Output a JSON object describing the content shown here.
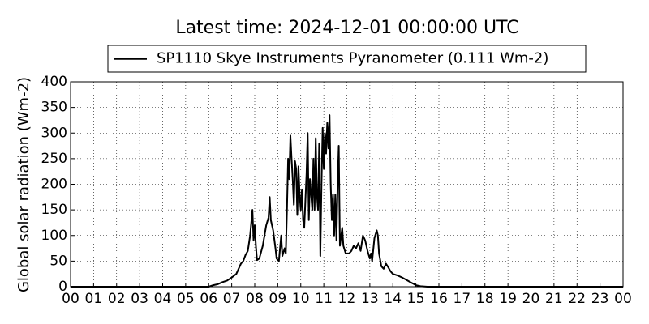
{
  "chart_data": {
    "type": "line",
    "title": "Latest time: 2024-12-01 00:00:00 UTC",
    "y_label": "Global solar radiation (Wm-2)",
    "legend": "upper center",
    "grid": true,
    "xlim": [
      0,
      24
    ],
    "ylim": [
      0,
      400
    ],
    "yticks": [
      0,
      50,
      100,
      150,
      200,
      250,
      300,
      350,
      400
    ],
    "xticks": [
      {
        "value": 0,
        "label": "00"
      },
      {
        "value": 1,
        "label": "01"
      },
      {
        "value": 2,
        "label": "02"
      },
      {
        "value": 3,
        "label": "03"
      },
      {
        "value": 4,
        "label": "04"
      },
      {
        "value": 5,
        "label": "05"
      },
      {
        "value": 6,
        "label": "06"
      },
      {
        "value": 7,
        "label": "07"
      },
      {
        "value": 8,
        "label": "08"
      },
      {
        "value": 9,
        "label": "09"
      },
      {
        "value": 10,
        "label": "10"
      },
      {
        "value": 11,
        "label": "11"
      },
      {
        "value": 12,
        "label": "12"
      },
      {
        "value": 13,
        "label": "13"
      },
      {
        "value": 14,
        "label": "14"
      },
      {
        "value": 15,
        "label": "15"
      },
      {
        "value": 16,
        "label": "16"
      },
      {
        "value": 17,
        "label": "17"
      },
      {
        "value": 18,
        "label": "18"
      },
      {
        "value": 19,
        "label": "19"
      },
      {
        "value": 20,
        "label": "20"
      },
      {
        "value": 21,
        "label": "21"
      },
      {
        "value": 22,
        "label": "22"
      },
      {
        "value": 23,
        "label": "23"
      },
      {
        "value": 24,
        "label": "00"
      }
    ],
    "x": [
      0,
      6.0,
      6.2,
      6.4,
      6.6,
      6.8,
      7.0,
      7.2,
      7.4,
      7.5,
      7.6,
      7.7,
      7.8,
      7.9,
      7.95,
      8.0,
      8.05,
      8.1,
      8.2,
      8.35,
      8.5,
      8.6,
      8.65,
      8.7,
      8.8,
      8.9,
      8.95,
      9.05,
      9.15,
      9.2,
      9.3,
      9.35,
      9.4,
      9.45,
      9.5,
      9.55,
      9.6,
      9.65,
      9.7,
      9.75,
      9.8,
      9.85,
      9.9,
      9.95,
      10.0,
      10.05,
      10.1,
      10.15,
      10.25,
      10.3,
      10.35,
      10.4,
      10.5,
      10.55,
      10.6,
      10.65,
      10.7,
      10.75,
      10.8,
      10.85,
      10.9,
      10.95,
      11.0,
      11.05,
      11.1,
      11.15,
      11.2,
      11.25,
      11.3,
      11.35,
      11.4,
      11.45,
      11.5,
      11.55,
      11.6,
      11.65,
      11.7,
      11.8,
      11.85,
      11.95,
      12.1,
      12.2,
      12.3,
      12.4,
      12.5,
      12.6,
      12.7,
      12.8,
      12.9,
      13.0,
      13.05,
      13.1,
      13.2,
      13.3,
      13.35,
      13.4,
      13.5,
      13.6,
      13.7,
      13.8,
      13.9,
      14.0,
      14.2,
      14.4,
      14.6,
      14.8,
      15.0,
      15.2,
      15.5,
      24
    ],
    "series": [
      {
        "name": "SP1110 Skye Instruments Pyranometer (0.111 Wm-2)",
        "color": "#000000",
        "values": [
          0,
          0,
          3,
          5,
          9,
          12,
          18,
          25,
          45,
          50,
          62,
          70,
          100,
          150,
          90,
          120,
          80,
          52,
          55,
          80,
          120,
          135,
          175,
          130,
          110,
          75,
          55,
          50,
          100,
          60,
          75,
          65,
          150,
          250,
          210,
          295,
          250,
          210,
          160,
          245,
          230,
          140,
          235,
          180,
          150,
          190,
          130,
          115,
          220,
          300,
          130,
          210,
          150,
          250,
          150,
          290,
          180,
          150,
          280,
          60,
          200,
          310,
          230,
          300,
          260,
          320,
          270,
          335,
          200,
          130,
          180,
          100,
          180,
          90,
          200,
          275,
          80,
          115,
          80,
          65,
          65,
          70,
          80,
          75,
          85,
          70,
          100,
          90,
          70,
          55,
          65,
          50,
          95,
          110,
          100,
          65,
          40,
          35,
          45,
          38,
          30,
          25,
          22,
          18,
          13,
          8,
          3,
          1,
          0,
          0
        ]
      }
    ]
  }
}
